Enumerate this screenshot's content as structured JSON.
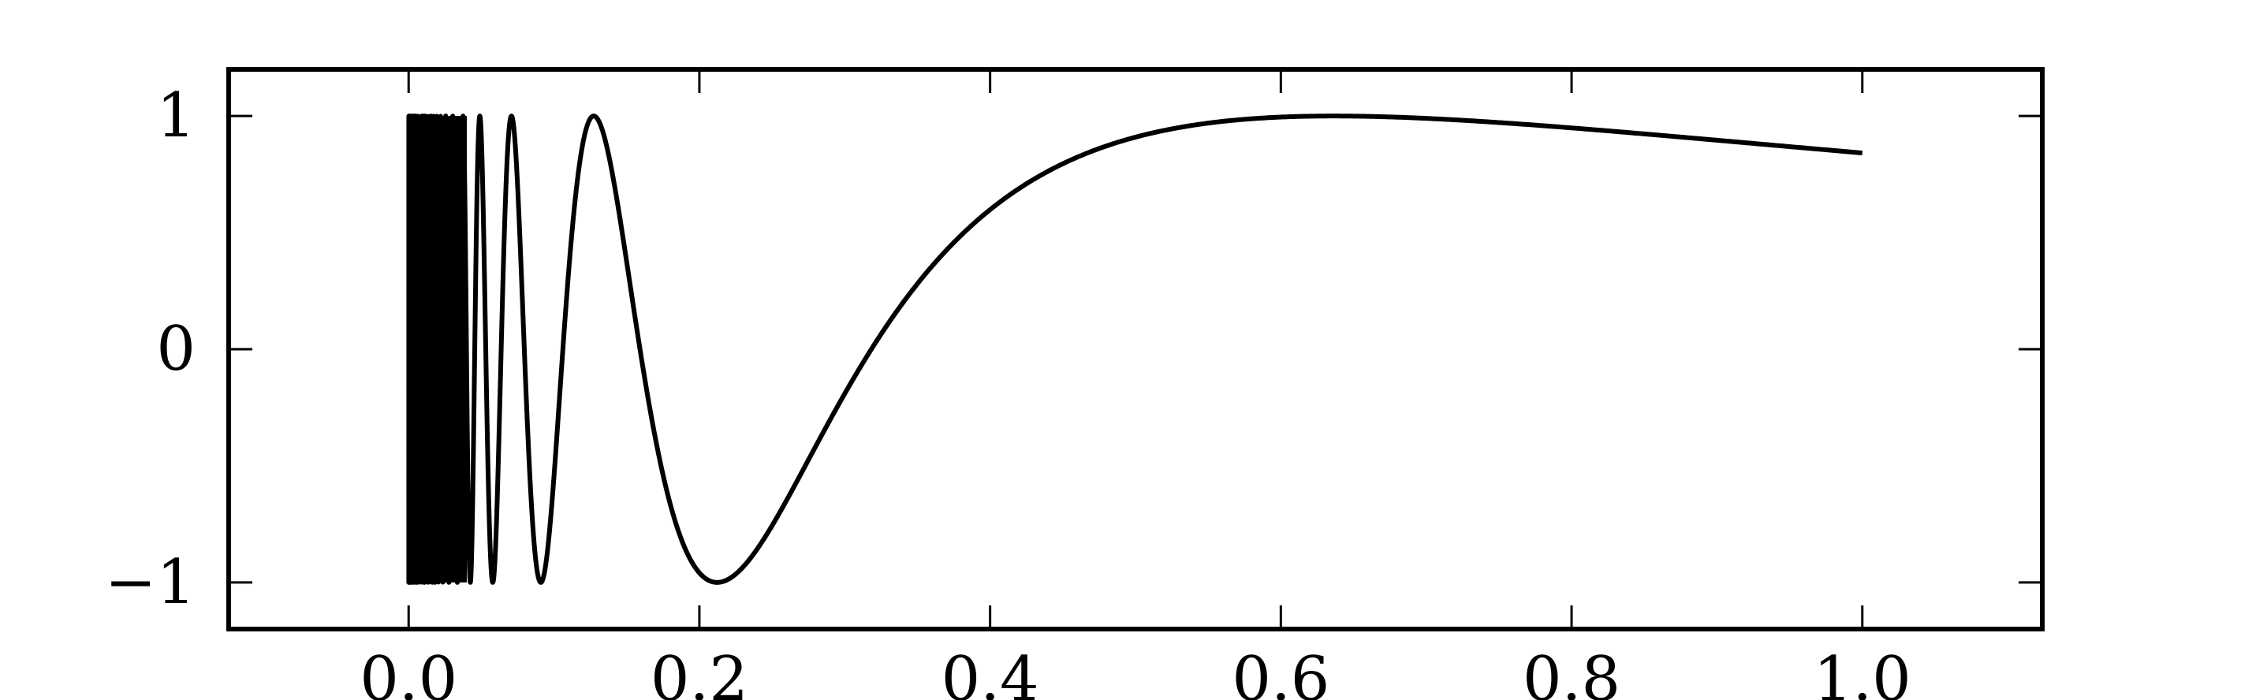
{
  "chart_data": {
    "type": "line",
    "function": "sin(1/x)",
    "x": [
      0.0,
      0.05,
      0.1,
      0.15,
      0.2,
      0.25,
      0.3,
      0.35,
      0.4,
      0.45,
      0.5,
      0.55,
      0.6,
      0.65,
      0.7,
      0.75,
      0.8,
      0.85,
      0.9,
      0.95,
      1.0
    ],
    "xlim": [
      -0.1238,
      1.1238
    ],
    "ylim": [
      -1.2,
      1.2
    ],
    "xticks": [
      0.0,
      0.2,
      0.4,
      0.6,
      0.8,
      1.0
    ],
    "xtick_labels": [
      "0.0",
      "0.2",
      "0.4",
      "0.6",
      "0.8",
      "1.0"
    ],
    "yticks": [
      -1,
      0,
      1
    ],
    "ytick_labels": [
      "−1",
      "0",
      "1"
    ],
    "series": [
      {
        "values": [
          0,
          0.913,
          -0.544,
          0.374,
          -0.959,
          -0.757,
          -0.19,
          0.279,
          0.598,
          0.796,
          0.909,
          0.97,
          0.995,
          0.999,
          0.99,
          0.973,
          0.951,
          0.927,
          0.901,
          0.872,
          0.841
        ],
        "color": "#000000"
      }
    ],
    "grid": false,
    "legend": "none",
    "line_color": "#000000"
  }
}
